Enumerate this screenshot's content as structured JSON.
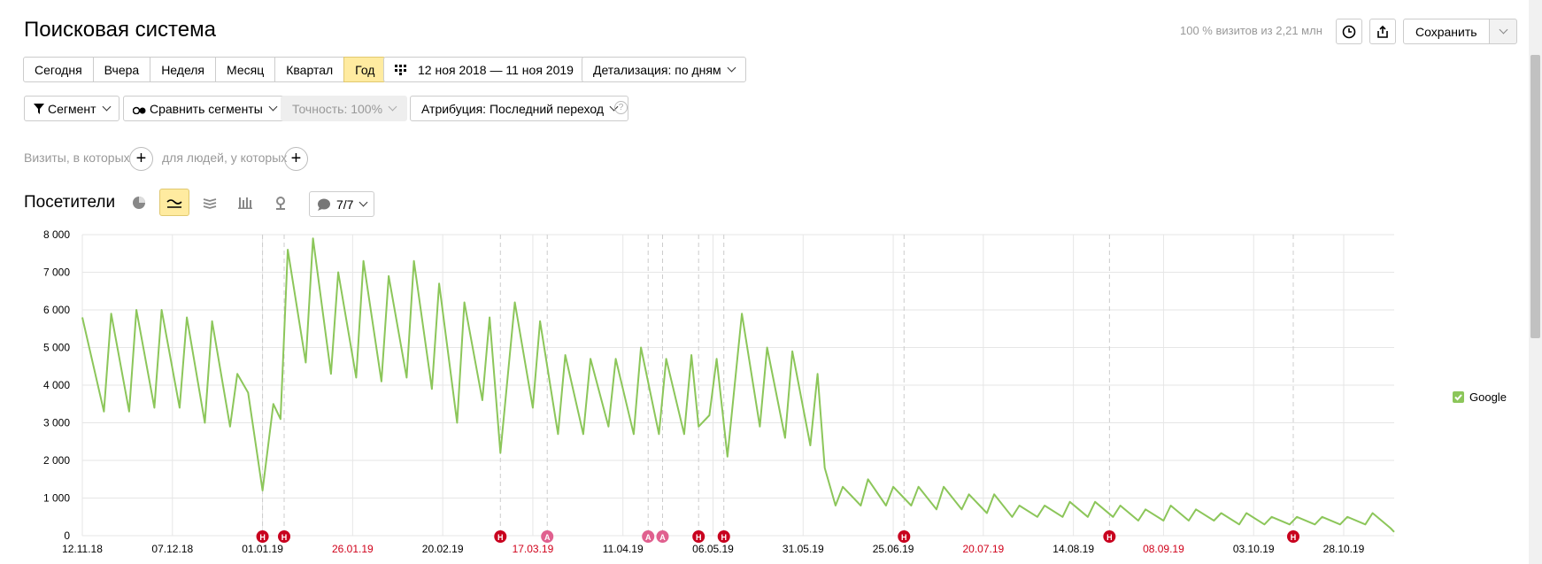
{
  "header": {
    "title": "Поисковая система",
    "visits_info": "100 % визитов из 2,21 млн",
    "save": "Сохранить"
  },
  "period_buttons": [
    "Сегодня",
    "Вчера",
    "Неделя",
    "Месяц",
    "Квартал",
    "Год"
  ],
  "active_period": 5,
  "date_range": "12 ноя 2018 — 11 ноя 2019",
  "detail": "Детализация: по дням",
  "filters": {
    "segment": "Сегмент",
    "compare": "Сравнить сегменты",
    "accuracy": "Точность: 100%",
    "attribution": "Атрибуция: Последний переход"
  },
  "conditions": {
    "visits": "Визиты, в которых",
    "people": "для людей, у которых"
  },
  "chart_header": {
    "metric": "Посетители",
    "notes": "7/7"
  },
  "chart_data": {
    "type": "line",
    "xlim": [
      "12.11.18",
      "11.11.19"
    ],
    "ylim": [
      0,
      8000
    ],
    "yticks": [
      0,
      {
        "value": 1000,
        "label": "1 000"
      },
      {
        "value": 2000,
        "label": "2 000"
      },
      {
        "value": 3000,
        "label": "3 000"
      },
      {
        "value": 4000,
        "label": "4 000"
      },
      {
        "value": 5000,
        "label": "5 000"
      },
      {
        "value": 6000,
        "label": "6 000"
      },
      {
        "value": 7000,
        "label": "7 000"
      },
      {
        "value": 8000,
        "label": "8 000"
      }
    ],
    "xticks": [
      "12.11.18",
      "07.12.18",
      "01.01.19",
      "26.01.19",
      "20.02.19",
      "17.03.19",
      "11.04.19",
      "06.05.19",
      "31.05.19",
      "25.06.19",
      "20.07.19",
      "14.08.19",
      "08.09.19",
      "03.10.19",
      "28.10.19"
    ],
    "highlighted_xticks": [
      3,
      5,
      10,
      12
    ],
    "highlight_color": "#d0021b",
    "grid": true,
    "x": [
      "12.11.18",
      "18.11.18",
      "20.11.18",
      "25.11.18",
      "27.11.18",
      "02.12.18",
      "04.12.18",
      "09.12.18",
      "11.12.18",
      "16.12.18",
      "18.12.18",
      "23.12.18",
      "25.12.18",
      "28.12.18",
      "01.01.19",
      "04.01.19",
      "06.01.19",
      "08.01.19",
      "13.01.19",
      "15.01.19",
      "20.01.19",
      "22.01.19",
      "27.01.19",
      "29.01.19",
      "03.02.19",
      "05.02.19",
      "10.02.19",
      "12.02.19",
      "17.02.19",
      "19.02.19",
      "24.02.19",
      "26.02.19",
      "03.03.19",
      "05.03.19",
      "08.03.19",
      "12.03.19",
      "17.03.19",
      "19.03.19",
      "24.03.19",
      "26.03.19",
      "31.03.19",
      "02.04.19",
      "07.04.19",
      "09.04.19",
      "14.04.19",
      "16.04.19",
      "21.04.19",
      "23.04.19",
      "28.04.19",
      "30.04.19",
      "02.05.19",
      "05.05.19",
      "07.05.19",
      "10.05.19",
      "14.05.19",
      "19.05.19",
      "21.05.19",
      "26.05.19",
      "28.05.19",
      "02.06.19",
      "04.06.19",
      "06.06.19",
      "09.06.19",
      "11.06.19",
      "16.06.19",
      "18.06.19",
      "23.06.19",
      "25.06.19",
      "30.06.19",
      "02.07.19",
      "07.07.19",
      "09.07.19",
      "14.07.19",
      "16.07.19",
      "21.07.19",
      "23.07.19",
      "28.07.19",
      "30.07.19",
      "04.08.19",
      "06.08.19",
      "11.08.19",
      "13.08.19",
      "18.08.19",
      "20.08.19",
      "25.08.19",
      "27.08.19",
      "01.09.19",
      "03.09.19",
      "08.09.19",
      "10.09.19",
      "15.09.19",
      "17.09.19",
      "22.09.19",
      "24.09.19",
      "29.09.19",
      "01.10.19",
      "06.10.19",
      "08.10.19",
      "13.10.19",
      "15.10.19",
      "20.10.19",
      "22.10.19",
      "27.10.19",
      "29.10.19",
      "03.11.19",
      "05.11.19",
      "10.11.19",
      "11.11.19"
    ],
    "series": [
      {
        "name": "Google",
        "color": "#8cc65a",
        "values": [
          5800,
          3300,
          5900,
          3300,
          6000,
          3400,
          6000,
          3400,
          5800,
          3000,
          5700,
          2900,
          4300,
          3800,
          1200,
          3500,
          3100,
          7600,
          4600,
          7900,
          4300,
          7000,
          4200,
          7300,
          4100,
          6900,
          4200,
          7300,
          3900,
          6700,
          3000,
          6200,
          3600,
          5800,
          2200,
          6200,
          3400,
          5700,
          2700,
          4800,
          2700,
          4700,
          2900,
          4700,
          2700,
          5000,
          2700,
          4700,
          2700,
          4800,
          2900,
          3200,
          4700,
          2100,
          5900,
          2900,
          5000,
          2600,
          4900,
          2400,
          4300,
          1800,
          800,
          1300,
          800,
          1500,
          800,
          1300,
          800,
          1300,
          700,
          1300,
          700,
          1100,
          600,
          1100,
          500,
          800,
          500,
          800,
          500,
          900,
          500,
          900,
          500,
          800,
          400,
          700,
          400,
          800,
          400,
          700,
          400,
          600,
          300,
          600,
          300,
          500,
          300,
          500,
          300,
          500,
          300,
          500,
          300,
          600,
          200,
          100
        ]
      }
    ],
    "annotations": [
      {
        "x": "01.01.19",
        "label": "Н",
        "color": "#c8001e"
      },
      {
        "x": "07.01.19",
        "label": "Н",
        "color": "#c8001e"
      },
      {
        "x": "08.03.19",
        "label": "Н",
        "color": "#c8001e"
      },
      {
        "x": "21.03.19",
        "label": "А",
        "color": "#e0608f"
      },
      {
        "x": "18.04.19",
        "label": "А",
        "color": "#e0608f"
      },
      {
        "x": "22.04.19",
        "label": "А",
        "color": "#e0608f"
      },
      {
        "x": "02.05.19",
        "label": "Н",
        "color": "#c8001e"
      },
      {
        "x": "09.05.19",
        "label": "Н",
        "color": "#c8001e"
      },
      {
        "x": "28.06.19",
        "label": "Н",
        "color": "#c8001e"
      },
      {
        "x": "24.08.19",
        "label": "Н",
        "color": "#c8001e"
      },
      {
        "x": "14.10.19",
        "label": "Н",
        "color": "#c8001e"
      }
    ]
  }
}
